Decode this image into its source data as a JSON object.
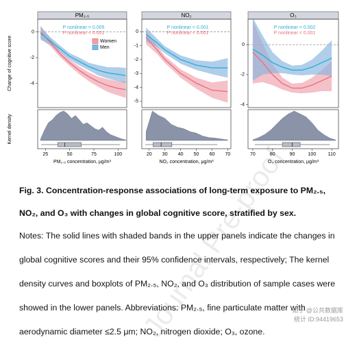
{
  "chart_data": [
    {
      "type": "line",
      "title": "PM₂.₅",
      "y_label": "Change of cognitive score",
      "density_label": "Kernel density",
      "x_label": "PM₂.₅ concentration, μg/m³",
      "xlim": [
        17,
        109
      ],
      "xticks": [
        25,
        50,
        75,
        100
      ],
      "ylim": [
        -5.9,
        1.0
      ],
      "yticks": [
        0,
        -2,
        -4
      ],
      "x": [
        20,
        30,
        40,
        50,
        60,
        70,
        80,
        90,
        100,
        108
      ],
      "series": [
        {
          "name": "Women",
          "color": "#e8707e",
          "band_color": "#f0a0ab",
          "values": [
            0.0,
            -0.8,
            -1.7,
            -2.4,
            -3.0,
            -3.5,
            -3.9,
            -4.2,
            -4.4,
            -4.5
          ],
          "lower": [
            -0.5,
            -1.1,
            -1.95,
            -2.65,
            -3.3,
            -3.85,
            -4.3,
            -4.7,
            -4.95,
            -5.15
          ],
          "upper": [
            0.5,
            -0.5,
            -1.45,
            -2.15,
            -2.7,
            -3.15,
            -3.5,
            -3.7,
            -3.85,
            -3.85
          ]
        },
        {
          "name": "Men",
          "color": "#2ab0d6",
          "band_color": "#86b4de",
          "values": [
            -0.1,
            -0.7,
            -1.3,
            -1.9,
            -2.3,
            -2.7,
            -3.0,
            -3.2,
            -3.3,
            -3.4
          ],
          "lower": [
            -0.6,
            -1.0,
            -1.55,
            -2.15,
            -2.6,
            -3.0,
            -3.4,
            -3.65,
            -3.85,
            -4.0
          ],
          "upper": [
            0.4,
            -0.4,
            -1.05,
            -1.65,
            -2.0,
            -2.4,
            -2.6,
            -2.75,
            -2.75,
            -2.8
          ]
        }
      ],
      "annotations": [
        {
          "text": "P nonlinear = 0.005",
          "color": "#2ab0d6"
        },
        {
          "text": "P nonlinear < 0.001",
          "color": "#e8707e"
        }
      ],
      "density": {
        "x": [
          20,
          24,
          28,
          32,
          36,
          40,
          44,
          48,
          52,
          56,
          60,
          64,
          68,
          72,
          76,
          80,
          84,
          88,
          92,
          96,
          100,
          104,
          108
        ],
        "values": [
          0.05,
          0.35,
          0.6,
          0.7,
          0.85,
          0.95,
          1.0,
          0.9,
          0.75,
          0.85,
          0.7,
          0.55,
          0.6,
          0.5,
          0.4,
          0.35,
          0.45,
          0.3,
          0.2,
          0.15,
          0.1,
          0.05,
          0.02
        ]
      },
      "boxplot": {
        "min": 20.6,
        "q1": 37.7,
        "median": 45,
        "q3": 62,
        "max": 102
      }
    },
    {
      "type": "line",
      "title": "NO₂",
      "x_label": "NO₂ concentration, μg/m³",
      "xlim": [
        15.3,
        72
      ],
      "xticks": [
        20,
        30,
        40,
        50,
        60,
        70
      ],
      "ylim": [
        -5.45,
        0.9
      ],
      "yticks": [
        0,
        -1,
        -2,
        -3,
        -4,
        -5
      ],
      "x": [
        18,
        25,
        30,
        40,
        50,
        60,
        70
      ],
      "series": [
        {
          "color": "#e8707e",
          "band_color": "#f0a0ab",
          "values": [
            -0.4,
            -1.3,
            -2.0,
            -3.0,
            -3.7,
            -4.2,
            -4.3
          ],
          "lower": [
            -0.9,
            -1.6,
            -2.25,
            -3.3,
            -4.1,
            -4.75,
            -5.1
          ],
          "upper": [
            0.1,
            -1.0,
            -1.75,
            -2.7,
            -3.3,
            -3.65,
            -3.5
          ]
        },
        {
          "color": "#2ab0d6",
          "band_color": "#86b4de",
          "values": [
            -0.2,
            -0.8,
            -1.3,
            -2.0,
            -2.4,
            -2.6,
            -2.6
          ],
          "lower": [
            -0.7,
            -1.1,
            -1.55,
            -2.3,
            -2.75,
            -3.05,
            -3.3
          ],
          "upper": [
            0.3,
            -0.5,
            -1.05,
            -1.7,
            -2.05,
            -2.15,
            -1.9
          ]
        }
      ],
      "annotations": [
        {
          "text": "P nonlinear < 0.001",
          "color": "#2ab0d6"
        },
        {
          "text": "P nonlinear < 0.001",
          "color": "#e8707e"
        }
      ],
      "density": {
        "x": [
          18,
          22,
          26,
          30,
          34,
          38,
          42,
          46,
          50,
          54,
          58,
          62,
          66,
          70
        ],
        "values": [
          0.3,
          1.0,
          0.85,
          0.75,
          0.55,
          0.45,
          0.4,
          0.3,
          0.25,
          0.15,
          0.1,
          0.08,
          0.05,
          0.02
        ]
      },
      "boxplot": {
        "min": 17.4,
        "q1": 22.5,
        "median": 27.6,
        "q3": 34.4,
        "max": 63.4
      }
    },
    {
      "type": "line",
      "title": "O₃",
      "x_label": "O₃ concentration, μg/m³",
      "xlim": [
        67.6,
        113.4
      ],
      "xticks": [
        70,
        80,
        90,
        100,
        110
      ],
      "ylim": [
        -4.2,
        1.7
      ],
      "yticks": [
        0,
        -2,
        -4
      ],
      "x": [
        70,
        75,
        80,
        85,
        90,
        95,
        100,
        105,
        110
      ],
      "series": [
        {
          "color": "#e8707e",
          "band_color": "#f0a0ab",
          "values": [
            -0.5,
            -1.2,
            -2.0,
            -2.6,
            -2.9,
            -2.9,
            -2.7,
            -2.4,
            -2.1
          ],
          "lower": [
            -2.6,
            -2.5,
            -2.7,
            -3.0,
            -3.2,
            -3.25,
            -3.2,
            -3.1,
            -3.1
          ],
          "upper": [
            1.6,
            0.1,
            -1.3,
            -2.2,
            -2.6,
            -2.55,
            -2.2,
            -1.7,
            -1.1
          ]
        },
        {
          "color": "#2ab0d6",
          "band_color": "#86b4de",
          "values": [
            -0.3,
            -0.7,
            -1.2,
            -1.5,
            -1.7,
            -1.7,
            -1.5,
            -1.2,
            -0.9
          ],
          "lower": [
            -2.4,
            -2.0,
            -1.9,
            -1.9,
            -2.0,
            -2.05,
            -2.0,
            -2.0,
            -2.1
          ],
          "upper": [
            1.8,
            0.6,
            -0.5,
            -1.1,
            -1.4,
            -1.35,
            -1.0,
            -0.4,
            0.3
          ]
        }
      ],
      "annotations": [
        {
          "text": "P nonlinear = 0.002",
          "color": "#2ab0d6"
        },
        {
          "text": "P nonlinear < 0.001",
          "color": "#e8707e"
        }
      ],
      "density": {
        "x": [
          70,
          73,
          76,
          79,
          82,
          85,
          88,
          91,
          94,
          97,
          100,
          103,
          106,
          109,
          112
        ],
        "values": [
          0.02,
          0.1,
          0.2,
          0.35,
          0.55,
          0.75,
          0.9,
          1.0,
          0.9,
          0.8,
          0.6,
          0.35,
          0.2,
          0.08,
          0.02
        ]
      },
      "boxplot": {
        "min": 71,
        "q1": 85,
        "median": 90,
        "q3": 94,
        "max": 109
      }
    }
  ],
  "caption": "Fig. 3. Concentration-response associations of long-term exposure to PM₂.₅, NO₂, and O₃ with changes in global cognitive score, stratified by sex.",
  "notes": "Notes: The solid lines with shaded bands in the upper panels indicate the changes in global cognitive scores and their 95% confidence intervals, respectively; The kernel density curves and boxplots of PM₂.₅, NO₂, and O₃ distribution of sample cases were showed in the lower panels. Abbreviations: PM₂.₅, fine particulate matter with aerodynamic diameter ≤2.5 μm; NO₂, nitrogen dioxide; O₃, ozone.",
  "watermark": "Journal Pre-proof",
  "corner_mark": "知乎 @公共数据库统计 ID:94419653"
}
